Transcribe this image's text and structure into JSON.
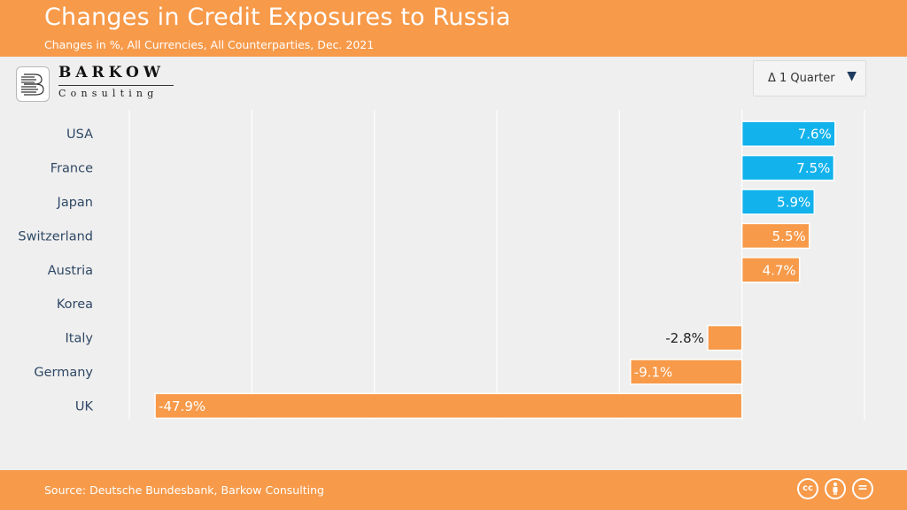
{
  "header": {
    "title": "Changes in Credit Exposures to Russia",
    "subtitle": "Changes in %, All Currencies, All Counterparties, Dec. 2021"
  },
  "logo": {
    "name": "BARKOW",
    "sub": "Consulting"
  },
  "dropdown": {
    "selected": "Δ 1 Quarter",
    "arrow_icon": "triangle-down-icon"
  },
  "footer": {
    "source": "Source: Deutsche Bundesbank, Barkow Consulting",
    "icons": [
      "cc-icon",
      "by-icon",
      "nd-icon"
    ]
  },
  "colors": {
    "brand": "#f79a4a",
    "highlight": "#12b2ec",
    "negative": "#f79a4a",
    "positive": "#f79a4a"
  },
  "chart_data": {
    "type": "bar",
    "orientation": "horizontal",
    "categories": [
      "USA",
      "France",
      "Japan",
      "Switzerland",
      "Austria",
      "Korea",
      "Italy",
      "Germany",
      "UK"
    ],
    "values": [
      7.6,
      7.5,
      5.9,
      5.5,
      4.7,
      null,
      -2.8,
      -9.1,
      -47.9
    ],
    "labels": [
      "7.6%",
      "7.5%",
      "5.9%",
      "5.5%",
      "4.7%",
      "",
      "-2.8%",
      "-9.1%",
      "-47.9%"
    ],
    "highlighted": [
      "USA",
      "France",
      "Japan"
    ],
    "xlim": [
      -50,
      10
    ],
    "grid": true,
    "title": "",
    "xlabel": "",
    "ylabel": ""
  }
}
